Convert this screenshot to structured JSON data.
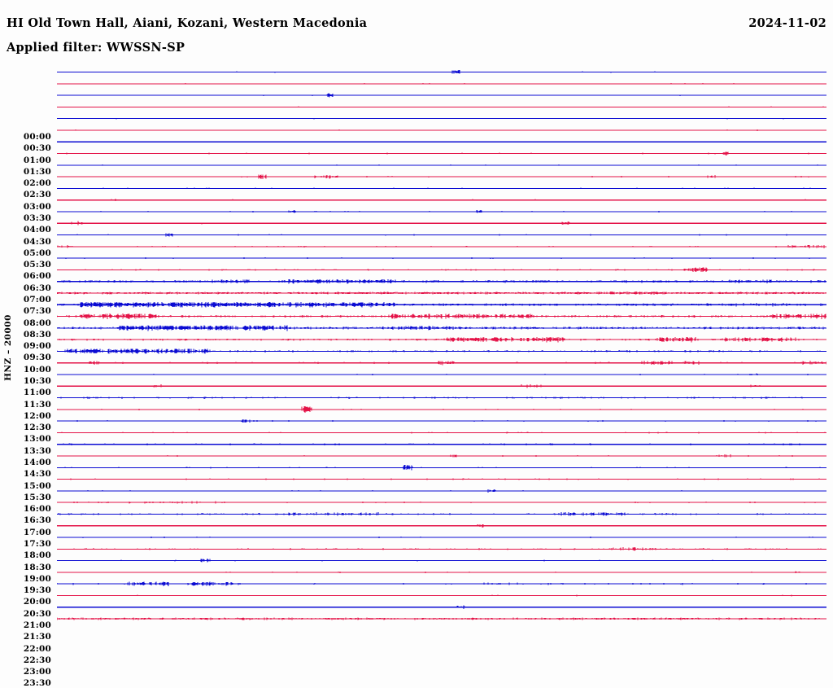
{
  "header": {
    "station_title": "HI Old Town Hall, Aiani, Kozani, Western Macedonia",
    "date": "2024-11-02",
    "filter_label": "Applied filter: WWSSN-SP"
  },
  "axis": {
    "channel_scale_label": "HNZ – 20000"
  },
  "colors": {
    "trace_blue": "#0a0ad2",
    "trace_red": "#e41348",
    "text": "#000000",
    "background": "#fdfdfd"
  },
  "chart_data": {
    "type": "line",
    "variant": "helicorder-24h-drum-plot",
    "title": "HI Old Town Hall, Aiani, Kozani, Western Macedonia",
    "date": "2024-11-02",
    "applied_filter": "WWSSN-SP",
    "channel": "HNZ",
    "gain_scale": 20000,
    "row_interval_minutes": 30,
    "legend_position": "none",
    "grid": false,
    "row_colors_alternate": [
      "blue",
      "red"
    ],
    "rows_note": "d=estimated noise tick density 0-1, a=estimated tick amplitude px, b=bursts [startFrac,endFrac,extraAmp,extraDensity] read from pixel activity",
    "rows": [
      {
        "time": "00:00",
        "color": "blue",
        "d": 0.02,
        "a": 0.7,
        "b": [
          [
            0.513,
            0.524,
            1.6,
            0.8
          ]
        ]
      },
      {
        "time": "00:30",
        "color": "red",
        "d": 0.015,
        "a": 0.7,
        "b": []
      },
      {
        "time": "01:00",
        "color": "blue",
        "d": 0.02,
        "a": 0.7,
        "b": [
          [
            0.35,
            0.359,
            1.4,
            0.8
          ]
        ]
      },
      {
        "time": "01:30",
        "color": "red",
        "d": 0.015,
        "a": 0.7,
        "b": []
      },
      {
        "time": "02:00",
        "color": "blue",
        "d": 0.02,
        "a": 0.7,
        "b": []
      },
      {
        "time": "02:30",
        "color": "red",
        "d": 0.02,
        "a": 0.7,
        "b": []
      },
      {
        "time": "03:00",
        "color": "blue",
        "d": 0.02,
        "a": 0.7,
        "b": []
      },
      {
        "time": "03:30",
        "color": "red",
        "d": 0.03,
        "a": 0.8,
        "b": [
          [
            0.865,
            0.876,
            1.2,
            0.6
          ]
        ]
      },
      {
        "time": "04:00",
        "color": "blue",
        "d": 0.02,
        "a": 0.7,
        "b": []
      },
      {
        "time": "04:30",
        "color": "red",
        "d": 0.04,
        "a": 0.8,
        "b": [
          [
            0.262,
            0.273,
            1.4,
            0.7
          ],
          [
            0.335,
            0.37,
            0.9,
            0.3
          ],
          [
            0.845,
            0.856,
            1.0,
            0.5
          ]
        ]
      },
      {
        "time": "05:00",
        "color": "blue",
        "d": 0.03,
        "a": 0.7,
        "b": []
      },
      {
        "time": "05:30",
        "color": "red",
        "d": 0.05,
        "a": 0.8,
        "b": [
          [
            0.07,
            0.082,
            0.8,
            0.4
          ]
        ]
      },
      {
        "time": "06:00",
        "color": "blue",
        "d": 0.05,
        "a": 0.8,
        "b": [
          [
            0.3,
            0.312,
            1.0,
            0.5
          ],
          [
            0.545,
            0.556,
            1.0,
            0.5
          ]
        ]
      },
      {
        "time": "06:30",
        "color": "red",
        "d": 0.05,
        "a": 0.8,
        "b": [
          [
            0.018,
            0.034,
            1.4,
            0.6
          ],
          [
            0.655,
            0.666,
            1.3,
            0.5
          ]
        ]
      },
      {
        "time": "07:00",
        "color": "blue",
        "d": 0.05,
        "a": 0.8,
        "b": [
          [
            0.14,
            0.152,
            1.4,
            0.6
          ]
        ]
      },
      {
        "time": "07:30",
        "color": "red",
        "d": 0.07,
        "a": 0.8,
        "b": [
          [
            0.0,
            0.02,
            1.0,
            0.4
          ],
          [
            0.93,
            1.0,
            0.8,
            0.25
          ]
        ]
      },
      {
        "time": "08:00",
        "color": "blue",
        "d": 0.07,
        "a": 0.8,
        "b": []
      },
      {
        "time": "08:30",
        "color": "red",
        "d": 0.12,
        "a": 0.9,
        "b": [
          [
            0.815,
            0.845,
            1.6,
            0.6
          ]
        ]
      },
      {
        "time": "09:00",
        "color": "blue",
        "d": 0.4,
        "a": 1.3,
        "b": [
          [
            0.2,
            0.25,
            0.6,
            0.15
          ],
          [
            0.3,
            0.44,
            0.9,
            0.25
          ],
          [
            0.87,
            0.93,
            0.7,
            0.2
          ]
        ]
      },
      {
        "time": "09:30",
        "color": "red",
        "d": 0.85,
        "a": 1.1,
        "b": [
          [
            0.7,
            0.78,
            0.4,
            0.0
          ]
        ]
      },
      {
        "time": "10:00",
        "color": "blue",
        "d": 0.45,
        "a": 1.3,
        "b": [
          [
            0.03,
            0.44,
            1.3,
            0.35
          ],
          [
            0.88,
            0.95,
            0.5,
            0.1
          ]
        ]
      },
      {
        "time": "10:30",
        "color": "red",
        "d": 0.35,
        "a": 1.2,
        "b": [
          [
            0.03,
            0.13,
            1.6,
            0.45
          ],
          [
            0.43,
            0.62,
            1.3,
            0.35
          ],
          [
            0.93,
            1.0,
            1.3,
            0.3
          ]
        ]
      },
      {
        "time": "11:00",
        "color": "blue",
        "d": 0.45,
        "a": 1.3,
        "b": [
          [
            0.08,
            0.3,
            1.4,
            0.35
          ],
          [
            0.42,
            0.52,
            0.6,
            0.1
          ]
        ]
      },
      {
        "time": "11:30",
        "color": "red",
        "d": 0.3,
        "a": 1.1,
        "b": [
          [
            0.5,
            0.66,
            1.5,
            0.4
          ],
          [
            0.78,
            0.83,
            1.5,
            0.4
          ],
          [
            0.86,
            0.96,
            1.1,
            0.3
          ]
        ]
      },
      {
        "time": "12:00",
        "color": "blue",
        "d": 0.25,
        "a": 1.1,
        "b": [
          [
            0.01,
            0.2,
            1.5,
            0.45
          ]
        ]
      },
      {
        "time": "12:30",
        "color": "red",
        "d": 0.1,
        "a": 1.0,
        "b": [
          [
            0.04,
            0.056,
            1.1,
            0.5
          ],
          [
            0.49,
            0.52,
            1.1,
            0.4
          ],
          [
            0.76,
            0.8,
            1.1,
            0.4
          ],
          [
            0.815,
            0.835,
            1.1,
            0.4
          ],
          [
            0.955,
            1.0,
            1.1,
            0.35
          ]
        ]
      },
      {
        "time": "13:00",
        "color": "blue",
        "d": 0.035,
        "a": 0.8,
        "b": [
          [
            0.9,
            0.916,
            1.0,
            0.5
          ]
        ]
      },
      {
        "time": "13:30",
        "color": "red",
        "d": 0.035,
        "a": 0.8,
        "b": [
          [
            0.125,
            0.14,
            0.9,
            0.4
          ],
          [
            0.6,
            0.63,
            0.9,
            0.3
          ],
          [
            0.9,
            0.916,
            0.9,
            0.4
          ]
        ]
      },
      {
        "time": "14:00",
        "color": "blue",
        "d": 0.2,
        "a": 1.0,
        "b": []
      },
      {
        "time": "14:30",
        "color": "red",
        "d": 0.04,
        "a": 0.8,
        "b": [
          [
            0.318,
            0.331,
            2.6,
            0.9
          ]
        ]
      },
      {
        "time": "15:00",
        "color": "blue",
        "d": 0.05,
        "a": 0.8,
        "b": [
          [
            0.24,
            0.251,
            0.9,
            0.4
          ]
        ]
      },
      {
        "time": "15:30",
        "color": "red",
        "d": 0.08,
        "a": 0.85,
        "b": []
      },
      {
        "time": "16:00",
        "color": "blue",
        "d": 0.16,
        "a": 1.0,
        "b": []
      },
      {
        "time": "16:30",
        "color": "red",
        "d": 0.035,
        "a": 0.8,
        "b": [
          [
            0.51,
            0.521,
            0.9,
            0.4
          ],
          [
            0.86,
            0.876,
            0.9,
            0.4
          ]
        ]
      },
      {
        "time": "17:00",
        "color": "blue",
        "d": 0.05,
        "a": 0.8,
        "b": [
          [
            0.45,
            0.463,
            2.0,
            0.9
          ]
        ]
      },
      {
        "time": "17:30",
        "color": "red",
        "d": 0.08,
        "a": 0.85,
        "b": []
      },
      {
        "time": "18:00",
        "color": "blue",
        "d": 0.03,
        "a": 0.75,
        "b": [
          [
            0.56,
            0.571,
            1.0,
            0.5
          ]
        ]
      },
      {
        "time": "18:30",
        "color": "red",
        "d": 0.05,
        "a": 0.8,
        "b": [
          [
            0.0,
            0.22,
            0.5,
            0.12
          ]
        ]
      },
      {
        "time": "19:00",
        "color": "blue",
        "d": 0.2,
        "a": 1.05,
        "b": [
          [
            0.3,
            0.42,
            0.8,
            0.2
          ],
          [
            0.64,
            0.74,
            0.9,
            0.25
          ]
        ]
      },
      {
        "time": "19:30",
        "color": "red",
        "d": 0.03,
        "a": 0.75,
        "b": [
          [
            0.545,
            0.556,
            1.0,
            0.5
          ]
        ]
      },
      {
        "time": "20:00",
        "color": "blue",
        "d": 0.03,
        "a": 0.75,
        "b": []
      },
      {
        "time": "20:30",
        "color": "red",
        "d": 0.13,
        "a": 0.95,
        "b": [
          [
            0.72,
            0.78,
            0.9,
            0.3
          ]
        ]
      },
      {
        "time": "21:00",
        "color": "blue",
        "d": 0.03,
        "a": 0.75,
        "b": [
          [
            0.185,
            0.2,
            1.2,
            0.6
          ]
        ]
      },
      {
        "time": "21:30",
        "color": "red",
        "d": 0.025,
        "a": 0.75,
        "b": [
          [
            0.955,
            0.966,
            0.9,
            0.4
          ]
        ]
      },
      {
        "time": "22:00",
        "color": "blue",
        "d": 0.1,
        "a": 0.9,
        "b": [
          [
            0.09,
            0.15,
            1.4,
            0.5
          ],
          [
            0.17,
            0.23,
            1.1,
            0.4
          ],
          [
            0.55,
            0.6,
            0.7,
            0.2
          ]
        ]
      },
      {
        "time": "22:30",
        "color": "red",
        "d": 0.02,
        "a": 0.7,
        "b": []
      },
      {
        "time": "23:00",
        "color": "blue",
        "d": 0.02,
        "a": 0.7,
        "b": [
          [
            0.52,
            0.533,
            1.1,
            0.5
          ]
        ]
      },
      {
        "time": "23:30",
        "color": "red",
        "d": 0.55,
        "a": 1.1,
        "b": []
      }
    ]
  }
}
